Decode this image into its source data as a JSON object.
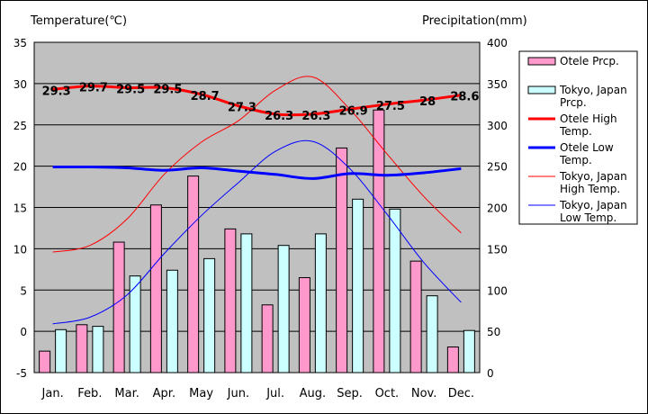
{
  "chart_data": {
    "type": "bar+line",
    "left_axis_title": "Temperature(℃)",
    "right_axis_title": "Precipitation(mm)",
    "categories": [
      "Jan.",
      "Feb.",
      "Mar.",
      "Apr.",
      "May",
      "Jun.",
      "Jul.",
      "Aug.",
      "Sep.",
      "Oct.",
      "Nov.",
      "Dec."
    ],
    "left_axis": {
      "min": -5,
      "max": 35,
      "step": 5
    },
    "right_axis": {
      "min": 0,
      "max": 400,
      "step": 50
    },
    "precipitation_series": [
      {
        "name": "Otele Prcp.",
        "color": "#ff99cc",
        "values": [
          26,
          58,
          158,
          203,
          238,
          174,
          82,
          115,
          272,
          318,
          135,
          31
        ]
      },
      {
        "name": "Tokyo, Japan Prcp.",
        "color": "#ccffff",
        "values": [
          52,
          56,
          117,
          124,
          138,
          168,
          154,
          168,
          210,
          198,
          93,
          51
        ]
      }
    ],
    "temperature_series": [
      {
        "name": "Otele High Temp.",
        "color": "#ff0000",
        "width": 3,
        "values": [
          29.3,
          29.7,
          29.5,
          29.5,
          28.7,
          27.3,
          26.3,
          26.3,
          26.9,
          27.5,
          28,
          28.6
        ],
        "labels": [
          "29.3",
          "29.7",
          "29.5",
          "29.5",
          "28.7",
          "27.3",
          "26.3",
          "26.3",
          "26.9",
          "27.5",
          "28",
          "28.6"
        ]
      },
      {
        "name": "Otele Low Temp.",
        "color": "#0000ff",
        "width": 3,
        "values": [
          19.9,
          19.9,
          19.8,
          19.5,
          19.8,
          19.4,
          19.0,
          18.5,
          19.1,
          18.9,
          19.2,
          19.7
        ]
      },
      {
        "name": "Tokyo, Japan High Temp.",
        "color": "#ff0000",
        "width": 1,
        "values": [
          9.6,
          10.4,
          13.6,
          19.0,
          22.9,
          25.5,
          29.2,
          30.8,
          26.9,
          21.5,
          16.3,
          11.9
        ]
      },
      {
        "name": "Tokyo, Japan Low Temp.",
        "color": "#0000ff",
        "width": 1,
        "values": [
          0.9,
          1.7,
          4.4,
          9.4,
          14.0,
          18.0,
          21.8,
          23.0,
          19.7,
          14.2,
          8.3,
          3.5
        ]
      }
    ],
    "legend_placement": "right",
    "grid": true
  }
}
